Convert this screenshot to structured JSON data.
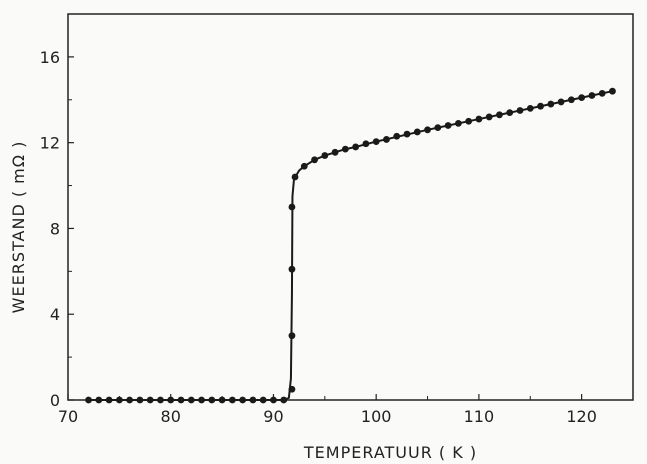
{
  "chart_data": {
    "type": "scatter",
    "title": "",
    "xlabel": "TEMPERATUUR ( K )",
    "ylabel": "WEERSTAND ( mΩ )",
    "xlim": [
      70,
      125
    ],
    "ylim": [
      0,
      18
    ],
    "xticks": [
      "70",
      "80",
      "90",
      "100",
      "110",
      "120"
    ],
    "yticks": [
      "0",
      "4",
      "8",
      "12",
      "16"
    ],
    "grid": false,
    "legend": "none",
    "colors": {
      "axis": "#222222",
      "line": "#1a1a1a",
      "marker": "#1a1a1a"
    },
    "series": [
      {
        "points": [
          [
            72,
            0
          ],
          [
            73,
            0
          ],
          [
            74,
            0
          ],
          [
            75,
            0
          ],
          [
            76,
            0
          ],
          [
            77,
            0
          ],
          [
            78,
            0
          ],
          [
            79,
            0
          ],
          [
            80,
            0
          ],
          [
            81,
            0
          ],
          [
            82,
            0
          ],
          [
            83,
            0
          ],
          [
            84,
            0
          ],
          [
            85,
            0
          ],
          [
            86,
            0
          ],
          [
            87,
            0
          ],
          [
            88,
            0
          ],
          [
            89,
            0
          ],
          [
            90,
            0
          ],
          [
            91,
            0
          ],
          [
            91.8,
            0.5
          ],
          [
            91.8,
            3.0
          ],
          [
            91.8,
            6.1
          ],
          [
            91.8,
            9.0
          ],
          [
            92.1,
            10.4
          ],
          [
            93,
            10.9
          ],
          [
            94,
            11.2
          ],
          [
            95,
            11.4
          ],
          [
            96,
            11.55
          ],
          [
            97,
            11.7
          ],
          [
            98,
            11.8
          ],
          [
            99,
            11.95
          ],
          [
            100,
            12.05
          ],
          [
            101,
            12.15
          ],
          [
            102,
            12.3
          ],
          [
            103,
            12.4
          ],
          [
            104,
            12.5
          ],
          [
            105,
            12.6
          ],
          [
            106,
            12.7
          ],
          [
            107,
            12.8
          ],
          [
            108,
            12.9
          ],
          [
            109,
            13.0
          ],
          [
            110,
            13.1
          ],
          [
            111,
            13.2
          ],
          [
            112,
            13.3
          ],
          [
            113,
            13.4
          ],
          [
            114,
            13.5
          ],
          [
            115,
            13.6
          ],
          [
            116,
            13.7
          ],
          [
            117,
            13.8
          ],
          [
            118,
            13.9
          ],
          [
            119,
            14.0
          ],
          [
            120,
            14.1
          ],
          [
            121,
            14.2
          ],
          [
            122,
            14.3
          ],
          [
            123,
            14.4
          ]
        ],
        "curve": [
          [
            72,
            0
          ],
          [
            91,
            0
          ],
          [
            91.5,
            0.1
          ],
          [
            91.7,
            1.0
          ],
          [
            91.8,
            5.0
          ],
          [
            91.85,
            9.5
          ],
          [
            92.0,
            10.3
          ],
          [
            92.5,
            10.7
          ],
          [
            93,
            10.9
          ],
          [
            94,
            11.2
          ],
          [
            95,
            11.4
          ],
          [
            96,
            11.55
          ],
          [
            97,
            11.7
          ],
          [
            98,
            11.8
          ],
          [
            100,
            12.05
          ],
          [
            105,
            12.6
          ],
          [
            110,
            13.1
          ],
          [
            115,
            13.6
          ],
          [
            120,
            14.1
          ],
          [
            123,
            14.4
          ]
        ]
      }
    ]
  }
}
